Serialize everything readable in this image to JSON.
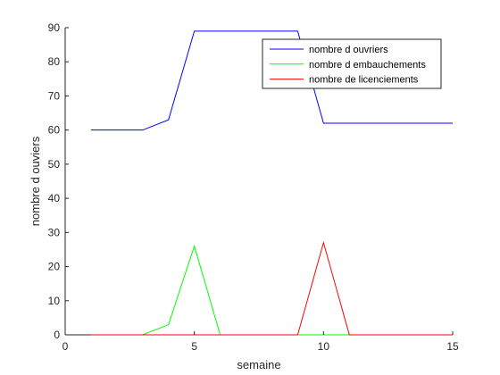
{
  "chart_data": {
    "type": "line",
    "title": "",
    "xlabel": "semaine",
    "ylabel": "nombre d ouviers",
    "xlim": [
      0,
      15
    ],
    "ylim": [
      0,
      90
    ],
    "xticks": [
      0,
      5,
      10,
      15
    ],
    "yticks": [
      0,
      10,
      20,
      30,
      40,
      50,
      60,
      70,
      80,
      90
    ],
    "grid": false,
    "legend_position": "top-right",
    "x": [
      1,
      2,
      3,
      4,
      5,
      6,
      7,
      8,
      9,
      10,
      11,
      12,
      13,
      14,
      15
    ],
    "series": [
      {
        "name": "nombre d ouvriers",
        "color": "#0000ff",
        "values": [
          60,
          60,
          60,
          63,
          89,
          89,
          89,
          89,
          89,
          62,
          62,
          62,
          62,
          62,
          62
        ]
      },
      {
        "name": "nombre d embauchements",
        "color": "#00ff00",
        "values": [
          0,
          0,
          0,
          3,
          26,
          0,
          0,
          0,
          0,
          0,
          0,
          0,
          0,
          0,
          0
        ]
      },
      {
        "name": "nombre de licenciements",
        "color": "#ff0000",
        "values": [
          0,
          0,
          0,
          0,
          0,
          0,
          0,
          0,
          0,
          27,
          0,
          0,
          0,
          0,
          0
        ]
      }
    ]
  }
}
